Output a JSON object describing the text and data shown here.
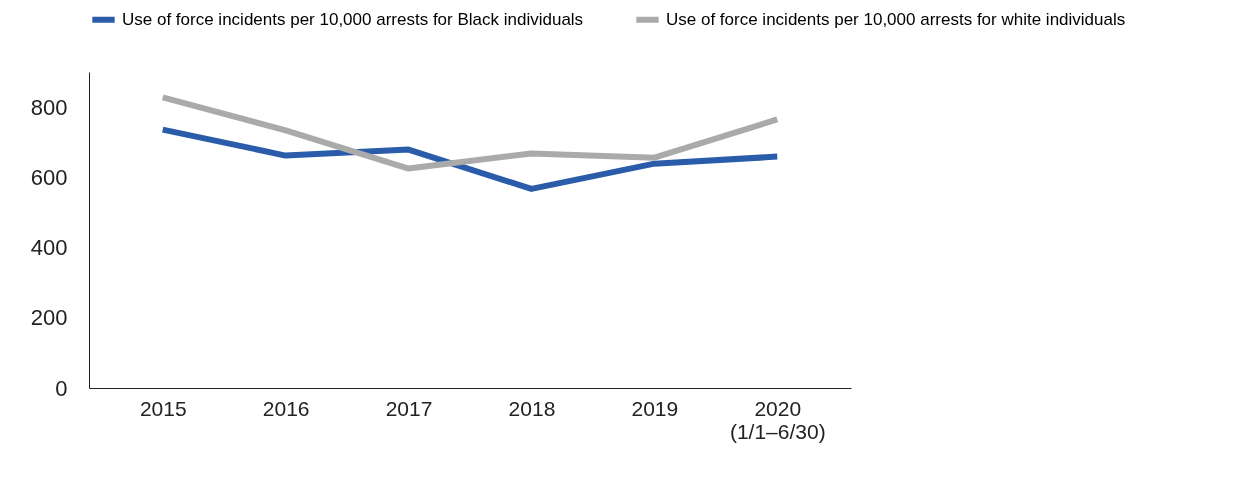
{
  "chart_data": {
    "type": "line",
    "categories": [
      "2015",
      "2016",
      "2017",
      "2018",
      "2019",
      "2020\n(1/1–6/30)"
    ],
    "series": [
      {
        "name": "Use of force incidents per 10,000 arrests for Black individuals",
        "color": "#2a5caa",
        "values": [
          736,
          662,
          679,
          567,
          639,
          659
        ]
      },
      {
        "name": "Use of force incidents per 10,000 arrests for white individuals",
        "color": "#aaaaaa",
        "values": [
          828,
          734,
          625,
          668,
          656,
          765
        ]
      }
    ],
    "ylim": [
      0,
      900
    ],
    "yticks": [
      0,
      200,
      400,
      600,
      800
    ],
    "grid": false,
    "legend": "top",
    "marker": "none",
    "line_style": "solid"
  }
}
